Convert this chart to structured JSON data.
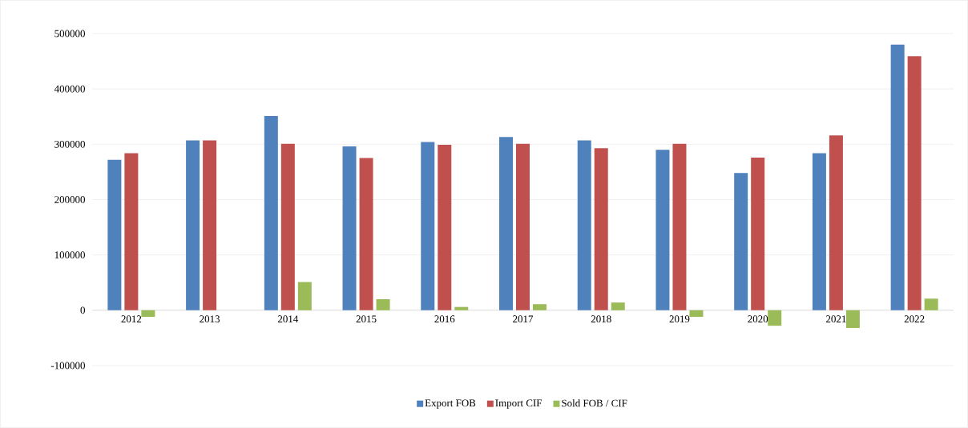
{
  "chart_data": {
    "type": "bar",
    "categories": [
      "2012",
      "2013",
      "2014",
      "2015",
      "2016",
      "2017",
      "2018",
      "2019",
      "2020",
      "2021",
      "2022"
    ],
    "series": [
      {
        "name": "Export FOB",
        "color": "#4f81bd",
        "values": [
          272000,
          307000,
          351000,
          296000,
          304000,
          313000,
          307000,
          290000,
          248000,
          284000,
          480000
        ]
      },
      {
        "name": "Import CIF",
        "color": "#c0504d",
        "values": [
          284000,
          307000,
          301000,
          275000,
          299000,
          301000,
          293000,
          301000,
          276000,
          316000,
          459000
        ]
      },
      {
        "name": "Sold FOB / CIF",
        "color": "#9bbb59",
        "values": [
          -12000,
          0,
          51000,
          20000,
          6000,
          11000,
          14000,
          -12000,
          -28000,
          -32000,
          21000
        ]
      }
    ],
    "ylim": [
      -100000,
      500000
    ],
    "yticks": [
      -100000,
      0,
      100000,
      200000,
      300000,
      400000,
      500000
    ],
    "grid": "y",
    "legend": "bottom"
  }
}
